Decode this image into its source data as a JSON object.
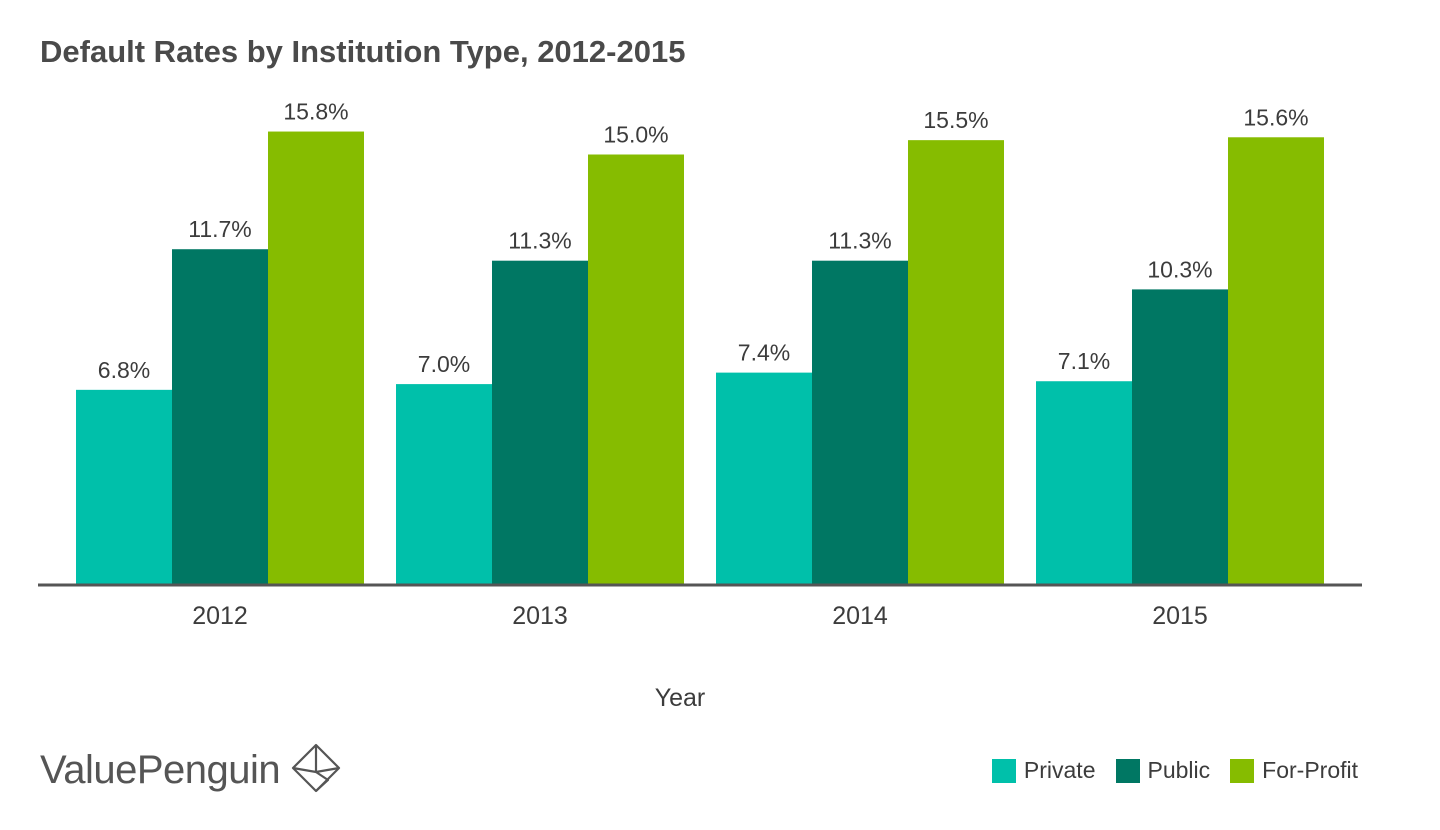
{
  "chart_data": {
    "type": "bar",
    "title": "Default Rates by Institution Type, 2012-2015",
    "xlabel": "Year",
    "ylabel": "",
    "ylim": [
      0,
      17
    ],
    "grid": false,
    "legend_position": "bottom-right",
    "categories": [
      "2012",
      "2013",
      "2014",
      "2015"
    ],
    "series": [
      {
        "name": "Private",
        "color": "#00c0aa",
        "values": [
          6.8,
          7.0,
          7.4,
          7.1
        ],
        "labels": [
          "6.8%",
          "7.0%",
          "7.4%",
          "7.1%"
        ]
      },
      {
        "name": "Public",
        "color": "#007763",
        "values": [
          11.7,
          11.3,
          11.3,
          10.3
        ],
        "labels": [
          "11.7%",
          "11.3%",
          "11.3%",
          "10.3%"
        ]
      },
      {
        "name": "For-Profit",
        "color": "#86bc00",
        "values": [
          15.8,
          15.0,
          15.5,
          15.6
        ],
        "labels": [
          "15.8%",
          "15.0%",
          "15.5%",
          "15.6%"
        ]
      }
    ]
  },
  "brand": {
    "name": "ValuePenguin",
    "icon": "diamond-logo-icon"
  }
}
